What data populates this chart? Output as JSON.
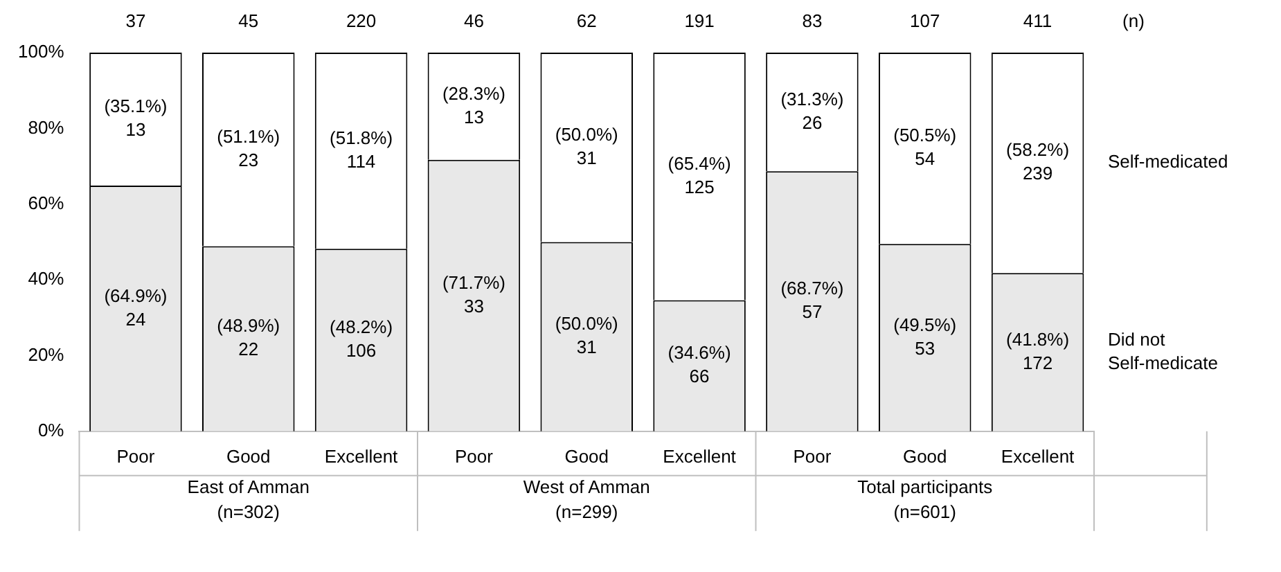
{
  "chart_data": {
    "type": "bar",
    "stacked": true,
    "categories": [
      "Poor",
      "Good",
      "Excellent",
      "Poor",
      "Good",
      "Excellent",
      "Poor",
      "Good",
      "Excellent"
    ],
    "series": [
      {
        "name": "Did not\nSelf-medicate",
        "color": "#e8e8e8",
        "values": [
          64.9,
          48.9,
          48.2,
          71.7,
          50.0,
          34.6,
          68.7,
          49.5,
          41.8
        ],
        "value_labels": [
          "(64.9%)\n24",
          "(48.9%)\n22",
          "(48.2%)\n106",
          "(71.7%)\n33",
          "(50.0%)\n31",
          "(34.6%)\n66",
          "(68.7%)\n57",
          "(49.5%)\n53",
          "(41.8%)\n172"
        ]
      },
      {
        "name": "Self-medicated",
        "color": "#ffffff",
        "values": [
          35.1,
          51.1,
          51.8,
          28.3,
          50.0,
          65.4,
          31.3,
          50.5,
          58.2
        ],
        "value_labels": [
          "(35.1%)\n13",
          "(51.1%)\n23",
          "(51.8%)\n114",
          "(28.3%)\n13",
          "(50.0%)\n31",
          "(65.4%)\n125",
          "(31.3%)\n26",
          "(50.5%)\n54",
          "(58.2%)\n239"
        ]
      }
    ],
    "annotations": [
      "37",
      "45",
      "220",
      "46",
      "62",
      "191",
      "83",
      "107",
      "411",
      "(n)",
      "East of Amman\n(n=302)",
      "West of Amman\n(n=299)",
      "Total participants\n(n=601)"
    ],
    "ylim": [
      0,
      100
    ],
    "yticks": [
      {
        "value": 0,
        "label": "0%"
      },
      {
        "value": 20,
        "label": "20%"
      },
      {
        "value": 40,
        "label": "40%"
      },
      {
        "value": 60,
        "label": "60%"
      },
      {
        "value": 80,
        "label": "80%"
      },
      {
        "value": 100,
        "label": "100%"
      }
    ],
    "grid": false,
    "legend": false
  }
}
